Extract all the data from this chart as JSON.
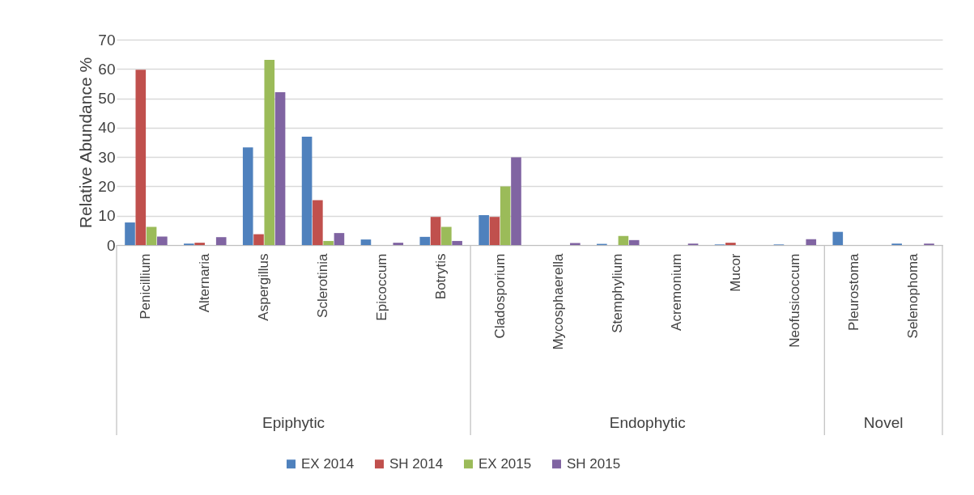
{
  "chart_data": {
    "type": "bar",
    "ylabel": "Relative Abundance %",
    "categories": [
      "Penicillium",
      "Alternaria",
      "Aspergillus",
      "Sclerotinia",
      "Epicoccum",
      "Botrytis",
      "Cladosporium",
      "Mycosphaerella",
      "Stemphylium",
      "Acremonium",
      "Mucor",
      "Neofusicoccum",
      "Pleurostoma",
      "Selenophoma"
    ],
    "series": [
      {
        "name": "EX 2014",
        "color": "#4f81bd",
        "values": [
          7.7,
          0.5,
          33.3,
          36.9,
          1.9,
          2.8,
          10.2,
          0,
          0.4,
          0,
          0.2,
          0.2,
          4.5,
          0.5
        ]
      },
      {
        "name": "SH 2014",
        "color": "#c0504d",
        "values": [
          59.7,
          0.8,
          3.7,
          15.3,
          0,
          9.6,
          9.6,
          0,
          0,
          0,
          0.8,
          0,
          0,
          0
        ]
      },
      {
        "name": "EX 2015",
        "color": "#9bbb59",
        "values": [
          6.2,
          0,
          63.1,
          1.4,
          0,
          6.2,
          20,
          0,
          3.1,
          0,
          0,
          0,
          0,
          0
        ]
      },
      {
        "name": "SH 2015",
        "color": "#8064a2",
        "values": [
          2.9,
          2.7,
          52.1,
          4.1,
          0.8,
          1.4,
          29.9,
          0.7,
          1.7,
          0.5,
          0,
          2.0,
          0,
          0.5
        ]
      }
    ],
    "ylim": [
      0,
      70
    ],
    "yticks": [
      0,
      10,
      20,
      30,
      40,
      50,
      60,
      70
    ],
    "grid": "y",
    "legend": "bottom",
    "annotations": [
      "Epiphytic",
      "Endophytic",
      "Novel"
    ]
  }
}
